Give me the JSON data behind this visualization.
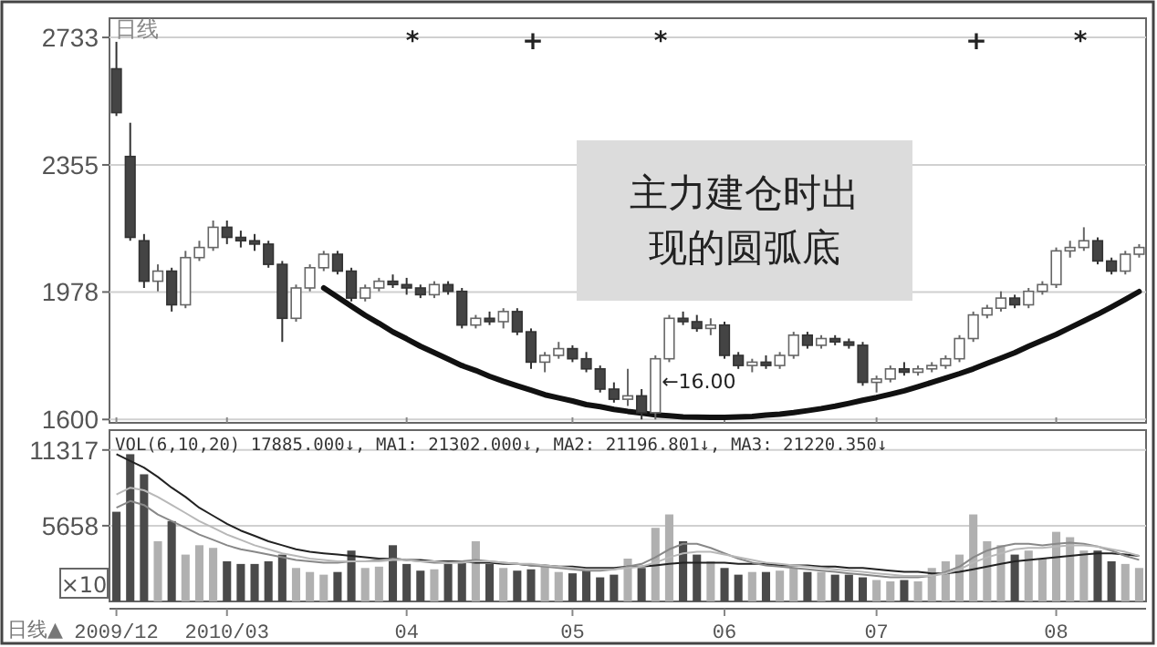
{
  "chart_data": [
    {
      "type": "candlestick",
      "title": "日线",
      "categories": [
        "2009/12",
        null,
        null,
        null,
        null,
        null,
        null,
        null,
        "2010/03",
        null,
        null,
        null,
        null,
        null,
        null,
        null,
        null,
        null,
        null,
        null,
        null,
        "04",
        null,
        null,
        null,
        null,
        null,
        null,
        null,
        null,
        null,
        null,
        null,
        "05",
        null,
        null,
        null,
        null,
        null,
        null,
        null,
        null,
        null,
        null,
        "06",
        null,
        null,
        null,
        null,
        null,
        null,
        null,
        null,
        null,
        null,
        "07",
        null,
        null,
        null,
        null,
        null,
        null,
        null,
        null,
        null,
        null,
        null,
        null,
        "08",
        null,
        null,
        null,
        null,
        null,
        null
      ],
      "ohlc": [
        [
          2640,
          2720,
          2500,
          2510
        ],
        [
          2380,
          2480,
          2130,
          2140
        ],
        [
          2130,
          2150,
          1990,
          2010
        ],
        [
          2010,
          2060,
          1980,
          2040
        ],
        [
          2040,
          2050,
          1920,
          1940
        ],
        [
          1940,
          2100,
          1930,
          2080
        ],
        [
          2080,
          2130,
          2070,
          2110
        ],
        [
          2110,
          2190,
          2100,
          2170
        ],
        [
          2170,
          2190,
          2120,
          2140
        ],
        [
          2140,
          2160,
          2110,
          2130
        ],
        [
          2130,
          2150,
          2100,
          2120
        ],
        [
          2120,
          2130,
          2050,
          2060
        ],
        [
          2060,
          2070,
          1830,
          1900
        ],
        [
          1900,
          2000,
          1890,
          1990
        ],
        [
          1990,
          2060,
          1980,
          2050
        ],
        [
          2050,
          2100,
          2040,
          2090
        ],
        [
          2090,
          2100,
          2030,
          2040
        ],
        [
          2040,
          2050,
          1950,
          1960
        ],
        [
          1960,
          2000,
          1950,
          1990
        ],
        [
          1990,
          2020,
          1980,
          2010
        ],
        [
          2010,
          2030,
          1990,
          2000
        ],
        [
          2000,
          2020,
          1970,
          1990
        ],
        [
          1990,
          2000,
          1960,
          1970
        ],
        [
          1970,
          2010,
          1960,
          2000
        ],
        [
          2000,
          2010,
          1970,
          1980
        ],
        [
          1980,
          1990,
          1870,
          1880
        ],
        [
          1880,
          1910,
          1870,
          1900
        ],
        [
          1900,
          1920,
          1880,
          1890
        ],
        [
          1890,
          1930,
          1870,
          1920
        ],
        [
          1920,
          1930,
          1850,
          1860
        ],
        [
          1860,
          1870,
          1750,
          1770
        ],
        [
          1770,
          1800,
          1740,
          1790
        ],
        [
          1790,
          1830,
          1780,
          1810
        ],
        [
          1810,
          1820,
          1770,
          1780
        ],
        [
          1780,
          1800,
          1740,
          1750
        ],
        [
          1750,
          1760,
          1680,
          1690
        ],
        [
          1690,
          1710,
          1650,
          1660
        ],
        [
          1660,
          1750,
          1640,
          1670
        ],
        [
          1670,
          1690,
          1600,
          1620
        ],
        [
          1620,
          1790,
          1600,
          1780
        ],
        [
          1780,
          1910,
          1770,
          1900
        ],
        [
          1900,
          1920,
          1880,
          1890
        ],
        [
          1890,
          1910,
          1860,
          1870
        ],
        [
          1870,
          1900,
          1850,
          1880
        ],
        [
          1880,
          1890,
          1780,
          1790
        ],
        [
          1790,
          1800,
          1750,
          1760
        ],
        [
          1760,
          1780,
          1740,
          1770
        ],
        [
          1770,
          1790,
          1750,
          1760
        ],
        [
          1760,
          1800,
          1750,
          1790
        ],
        [
          1790,
          1860,
          1780,
          1850
        ],
        [
          1850,
          1860,
          1810,
          1820
        ],
        [
          1820,
          1850,
          1810,
          1840
        ],
        [
          1840,
          1850,
          1820,
          1830
        ],
        [
          1830,
          1840,
          1810,
          1820
        ],
        [
          1820,
          1830,
          1700,
          1710
        ],
        [
          1710,
          1730,
          1680,
          1720
        ],
        [
          1720,
          1760,
          1710,
          1750
        ],
        [
          1750,
          1770,
          1730,
          1740
        ],
        [
          1740,
          1760,
          1730,
          1750
        ],
        [
          1750,
          1770,
          1740,
          1760
        ],
        [
          1760,
          1790,
          1750,
          1780
        ],
        [
          1780,
          1850,
          1770,
          1840
        ],
        [
          1840,
          1920,
          1830,
          1910
        ],
        [
          1910,
          1940,
          1900,
          1930
        ],
        [
          1930,
          1980,
          1920,
          1960
        ],
        [
          1960,
          1970,
          1930,
          1940
        ],
        [
          1940,
          1990,
          1930,
          1980
        ],
        [
          1980,
          2010,
          1970,
          2000
        ],
        [
          2000,
          2110,
          1990,
          2100
        ],
        [
          2100,
          2130,
          2080,
          2110
        ],
        [
          2110,
          2170,
          2100,
          2130
        ],
        [
          2130,
          2140,
          2060,
          2070
        ],
        [
          2070,
          2080,
          2030,
          2040
        ],
        [
          2040,
          2100,
          2030,
          2090
        ],
        [
          2090,
          2120,
          2080,
          2110
        ]
      ],
      "series": [
        {
          "type": "line",
          "color": "#111111",
          "values": [
            null,
            null,
            null,
            null,
            null,
            null,
            null,
            null,
            null,
            null,
            null,
            null,
            null,
            null,
            null,
            1990,
            1963,
            1936,
            1909,
            1885,
            1860,
            1839,
            1817,
            1798,
            1779,
            1760,
            1745,
            1728,
            1713,
            1700,
            1687,
            1673,
            1664,
            1655,
            1644,
            1638,
            1630,
            1624,
            1619,
            1614,
            1611,
            1608,
            1607,
            1606,
            1606,
            1608,
            1609,
            1613,
            1616,
            1620,
            1626,
            1632,
            1639,
            1648,
            1657,
            1665,
            1675,
            1685,
            1697,
            1710,
            1723,
            1736,
            1750,
            1766,
            1782,
            1798,
            1817,
            1835,
            1852,
            1872,
            1892,
            1912,
            1934,
            1956,
            1979
          ]
        }
      ],
      "ylim": [
        1590,
        2790
      ],
      "yticks": [
        1600,
        1978,
        2355,
        2733
      ],
      "grid": "y",
      "tick_labels": "y",
      "annotations": [
        "主力建仓时出现的圆弧底",
        "←16.00",
        "*",
        "+",
        "*",
        "+",
        "*"
      ]
    },
    {
      "type": "bar",
      "title": "VOL(6,10,20) 17885.000↓, MA1: 21302.000↓, MA2: 21196.801↓, MA3: 21220.350↓",
      "categories": [
        "2009/12",
        null,
        null,
        null,
        null,
        null,
        null,
        null,
        "2010/03",
        null,
        null,
        null,
        null,
        null,
        null,
        null,
        null,
        null,
        null,
        null,
        null,
        "04",
        null,
        null,
        null,
        null,
        null,
        null,
        null,
        null,
        null,
        null,
        null,
        "05",
        null,
        null,
        null,
        null,
        null,
        null,
        null,
        null,
        null,
        null,
        "06",
        null,
        null,
        null,
        null,
        null,
        null,
        null,
        null,
        null,
        null,
        "07",
        null,
        null,
        null,
        null,
        null,
        null,
        null,
        null,
        null,
        null,
        null,
        null,
        "08",
        null,
        null,
        null,
        null,
        null,
        null
      ],
      "series": [
        {
          "values": [
            6700,
            11000,
            9500,
            4500,
            6000,
            3500,
            4200,
            4000,
            3000,
            2800,
            2800,
            3000,
            3500,
            2500,
            2200,
            2000,
            2200,
            3800,
            2500,
            2600,
            4200,
            2800,
            2300,
            2400,
            2800,
            3000,
            4500,
            2800,
            2500,
            2300,
            2400,
            2600,
            2200,
            2100,
            2300,
            1800,
            2000,
            3200,
            2500,
            5500,
            6500,
            4500,
            3500,
            3000,
            2500,
            2000,
            2200,
            2200,
            2300,
            2500,
            2200,
            2200,
            2000,
            2000,
            1800,
            1600,
            1500,
            1600,
            1500,
            2500,
            3000,
            3500,
            6500,
            4500,
            4200,
            3500,
            3800,
            3200,
            5200,
            4800,
            3800,
            3800,
            3000,
            2800,
            2500
          ],
          "colors": [
            "#4a4a4a",
            "#4a4a4a",
            "#4a4a4a",
            "#b0b0b0",
            "#4a4a4a",
            "#b0b0b0",
            "#b0b0b0",
            "#b0b0b0",
            "#4a4a4a",
            "#4a4a4a",
            "#4a4a4a",
            "#4a4a4a",
            "#4a4a4a",
            "#b0b0b0",
            "#b0b0b0",
            "#b0b0b0",
            "#4a4a4a",
            "#4a4a4a",
            "#b0b0b0",
            "#b0b0b0",
            "#4a4a4a",
            "#4a4a4a",
            "#4a4a4a",
            "#b0b0b0",
            "#4a4a4a",
            "#4a4a4a",
            "#b0b0b0",
            "#4a4a4a",
            "#b0b0b0",
            "#4a4a4a",
            "#4a4a4a",
            "#b0b0b0",
            "#b0b0b0",
            "#4a4a4a",
            "#4a4a4a",
            "#4a4a4a",
            "#4a4a4a",
            "#b0b0b0",
            "#4a4a4a",
            "#b0b0b0",
            "#b0b0b0",
            "#4a4a4a",
            "#4a4a4a",
            "#b0b0b0",
            "#4a4a4a",
            "#4a4a4a",
            "#b0b0b0",
            "#4a4a4a",
            "#b0b0b0",
            "#b0b0b0",
            "#4a4a4a",
            "#b0b0b0",
            "#4a4a4a",
            "#4a4a4a",
            "#4a4a4a",
            "#b0b0b0",
            "#b0b0b0",
            "#4a4a4a",
            "#b0b0b0",
            "#b0b0b0",
            "#b0b0b0",
            "#b0b0b0",
            "#b0b0b0",
            "#b0b0b0",
            "#b0b0b0",
            "#4a4a4a",
            "#b0b0b0",
            "#b0b0b0",
            "#b0b0b0",
            "#b0b0b0",
            "#b0b0b0",
            "#4a4a4a",
            "#4a4a4a",
            "#b0b0b0",
            "#b0b0b0"
          ]
        },
        {
          "type": "line",
          "color": "#222222",
          "values": [
            11000,
            10500,
            10000,
            9300,
            8500,
            7800,
            7000,
            6400,
            5800,
            5300,
            4900,
            4500,
            4200,
            3900,
            3700,
            3600,
            3500,
            3400,
            3300,
            3200,
            3200,
            3100,
            3100,
            3000,
            3000,
            3000,
            2900,
            2900,
            2800,
            2800,
            2700,
            2700,
            2600,
            2600,
            2500,
            2500,
            2500,
            2600,
            2600,
            2700,
            2800,
            2900,
            2900,
            2900,
            2900,
            2800,
            2800,
            2800,
            2700,
            2700,
            2700,
            2600,
            2600,
            2500,
            2500,
            2400,
            2300,
            2200,
            2200,
            2100,
            2100,
            2200,
            2400,
            2600,
            2800,
            3000,
            3100,
            3200,
            3300,
            3400,
            3500,
            3600,
            3600,
            3500,
            3400
          ]
        },
        {
          "type": "line",
          "color": "#888888",
          "values": [
            7000,
            7500,
            7200,
            6500,
            6000,
            5500,
            5000,
            4600,
            4200,
            3900,
            3700,
            3500,
            3300,
            3100,
            3000,
            2900,
            2900,
            3000,
            3000,
            3100,
            3200,
            3100,
            3000,
            2900,
            2900,
            3000,
            3100,
            3000,
            2900,
            2800,
            2700,
            2600,
            2500,
            2400,
            2300,
            2300,
            2400,
            2600,
            2800,
            3300,
            3900,
            4300,
            4300,
            4000,
            3600,
            3200,
            2900,
            2700,
            2600,
            2500,
            2400,
            2300,
            2200,
            2100,
            2000,
            1900,
            1800,
            1800,
            1800,
            1900,
            2200,
            2600,
            3300,
            3800,
            4100,
            4300,
            4300,
            4200,
            4300,
            4400,
            4300,
            4100,
            3800,
            3400,
            3100
          ]
        },
        {
          "type": "line",
          "color": "#b8b8b8",
          "values": [
            8000,
            8500,
            8300,
            7800,
            7200,
            6600,
            6000,
            5500,
            5000,
            4600,
            4200,
            3900,
            3600,
            3400,
            3200,
            3100,
            3000,
            3000,
            3000,
            3000,
            3100,
            3100,
            3000,
            3000,
            2900,
            2900,
            3000,
            3000,
            2900,
            2800,
            2800,
            2700,
            2600,
            2500,
            2400,
            2400,
            2400,
            2500,
            2600,
            2900,
            3300,
            3600,
            3700,
            3700,
            3500,
            3300,
            3100,
            2900,
            2800,
            2700,
            2600,
            2500,
            2400,
            2300,
            2200,
            2100,
            2000,
            1900,
            1900,
            1900,
            2100,
            2400,
            2900,
            3300,
            3600,
            3900,
            4000,
            4000,
            4100,
            4200,
            4200,
            4100,
            3900,
            3700,
            3400
          ]
        }
      ],
      "ylim": [
        0,
        12800
      ],
      "yticks": [
        5658,
        11317
      ],
      "grid": "y",
      "annotations": [
        "×10",
        "日线▲"
      ]
    }
  ]
}
